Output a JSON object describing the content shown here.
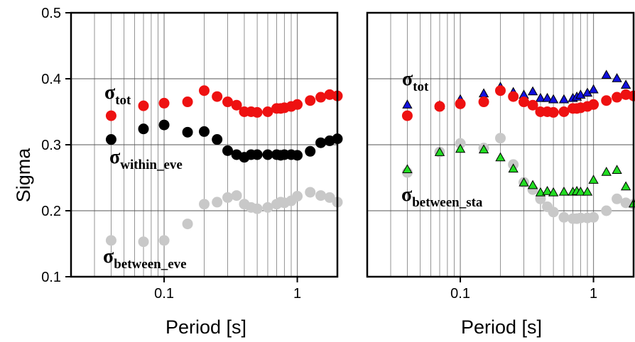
{
  "chart_data": [
    {
      "type": "scatter",
      "x_scale": "log",
      "xlabel": "Period [s]",
      "ylabel": "Sigma",
      "xlim": [
        0.02,
        2.0
      ],
      "ylim": [
        0.1,
        0.5
      ],
      "y_ticks": [
        "0.1",
        "0.2",
        "0.3",
        "0.4",
        "0.5"
      ],
      "x_ticks": [
        "0.1",
        "1"
      ],
      "grid": true,
      "series": [
        {
          "name": "σtot",
          "color": "#ee1111",
          "marker": "circle",
          "x": [
            0.04,
            0.07,
            0.1,
            0.15,
            0.2,
            0.25,
            0.3,
            0.35,
            0.4,
            0.45,
            0.5,
            0.6,
            0.7,
            0.75,
            0.8,
            0.9,
            1.0,
            1.25,
            1.5,
            1.75,
            2.0
          ],
          "y": [
            0.344,
            0.359,
            0.363,
            0.365,
            0.382,
            0.373,
            0.365,
            0.36,
            0.35,
            0.35,
            0.349,
            0.35,
            0.355,
            0.355,
            0.356,
            0.358,
            0.361,
            0.367,
            0.372,
            0.376,
            0.374
          ]
        },
        {
          "name": "σwithin_eve",
          "color": "#000000",
          "marker": "circle",
          "x": [
            0.04,
            0.07,
            0.1,
            0.15,
            0.2,
            0.25,
            0.3,
            0.35,
            0.4,
            0.45,
            0.5,
            0.6,
            0.7,
            0.75,
            0.8,
            0.9,
            1.0,
            1.25,
            1.5,
            1.75,
            2.0
          ],
          "y": [
            0.308,
            0.324,
            0.33,
            0.319,
            0.32,
            0.308,
            0.291,
            0.285,
            0.281,
            0.285,
            0.285,
            0.285,
            0.285,
            0.284,
            0.285,
            0.285,
            0.284,
            0.29,
            0.303,
            0.306,
            0.309
          ]
        },
        {
          "name": "σbetween_eve",
          "color": "#c8c8c8",
          "marker": "circle",
          "x": [
            0.04,
            0.07,
            0.1,
            0.15,
            0.2,
            0.25,
            0.3,
            0.35,
            0.4,
            0.45,
            0.5,
            0.6,
            0.7,
            0.75,
            0.8,
            0.9,
            1.0,
            1.25,
            1.5,
            1.75,
            2.0
          ],
          "y": [
            0.155,
            0.153,
            0.155,
            0.18,
            0.21,
            0.213,
            0.22,
            0.223,
            0.21,
            0.205,
            0.203,
            0.205,
            0.21,
            0.213,
            0.212,
            0.215,
            0.222,
            0.228,
            0.223,
            0.22,
            0.213
          ]
        }
      ],
      "annotations": [
        {
          "label": "σ",
          "sub": "tot"
        },
        {
          "label": "σ",
          "sub": "within_eve"
        },
        {
          "label": "σ",
          "sub": "between_eve"
        }
      ]
    },
    {
      "type": "scatter",
      "x_scale": "log",
      "xlabel": "Period [s]",
      "ylabel": "",
      "xlim": [
        0.02,
        2.0
      ],
      "ylim": [
        0.1,
        0.5
      ],
      "x_ticks": [
        "0.1",
        "1"
      ],
      "grid": true,
      "series": [
        {
          "name": "σtot (triangles)",
          "color": "#1111dd",
          "marker": "triangle",
          "x": [
            0.04,
            0.07,
            0.1,
            0.15,
            0.2,
            0.25,
            0.3,
            0.35,
            0.4,
            0.45,
            0.5,
            0.6,
            0.7,
            0.75,
            0.8,
            0.9,
            1.0,
            1.25,
            1.5,
            1.75,
            2.0
          ],
          "y": [
            0.36,
            0.359,
            0.368,
            0.377,
            0.387,
            0.379,
            0.375,
            0.38,
            0.37,
            0.37,
            0.368,
            0.368,
            0.37,
            0.372,
            0.375,
            0.378,
            0.383,
            0.405,
            0.4,
            0.39,
            0.375
          ]
        },
        {
          "name": "σtot (circles)",
          "color": "#ee1111",
          "marker": "circle",
          "x": [
            0.04,
            0.07,
            0.1,
            0.15,
            0.2,
            0.25,
            0.3,
            0.35,
            0.4,
            0.45,
            0.5,
            0.6,
            0.7,
            0.75,
            0.8,
            0.9,
            1.0,
            1.25,
            1.5,
            1.75,
            2.0
          ],
          "y": [
            0.344,
            0.358,
            0.362,
            0.365,
            0.382,
            0.373,
            0.365,
            0.36,
            0.35,
            0.35,
            0.349,
            0.35,
            0.355,
            0.355,
            0.356,
            0.358,
            0.361,
            0.367,
            0.372,
            0.376,
            0.374
          ]
        },
        {
          "name": "σbetween_sta (circles)",
          "color": "#c8c8c8",
          "marker": "circle",
          "x": [
            0.04,
            0.07,
            0.1,
            0.15,
            0.2,
            0.25,
            0.3,
            0.35,
            0.4,
            0.45,
            0.5,
            0.6,
            0.7,
            0.75,
            0.8,
            0.9,
            1.0,
            1.25,
            1.5,
            1.75,
            2.0
          ],
          "y": [
            0.258,
            0.289,
            0.302,
            0.295,
            0.31,
            0.27,
            0.243,
            0.232,
            0.218,
            0.206,
            0.198,
            0.19,
            0.188,
            0.188,
            0.189,
            0.189,
            0.19,
            0.2,
            0.218,
            0.212,
            0.21
          ]
        },
        {
          "name": "σbetween_sta (triangles)",
          "color": "#22dd22",
          "marker": "triangle",
          "x": [
            0.04,
            0.07,
            0.1,
            0.15,
            0.2,
            0.25,
            0.3,
            0.35,
            0.4,
            0.45,
            0.5,
            0.6,
            0.7,
            0.75,
            0.8,
            0.9,
            1.0,
            1.25,
            1.5,
            1.75,
            2.0
          ],
          "y": [
            0.262,
            0.288,
            0.293,
            0.292,
            0.28,
            0.263,
            0.242,
            0.238,
            0.227,
            0.229,
            0.227,
            0.228,
            0.228,
            0.229,
            0.228,
            0.228,
            0.246,
            0.258,
            0.261,
            0.236,
            0.21
          ]
        }
      ],
      "annotations": [
        {
          "label": "σ",
          "sub": "tot"
        },
        {
          "label": "σ",
          "sub": "between_sta"
        }
      ]
    }
  ]
}
